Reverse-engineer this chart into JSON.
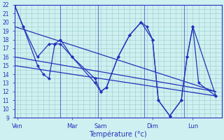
{
  "xlabel": "Température (°c)",
  "background_color": "#cff0f0",
  "line_color": "#2233bb",
  "grid_color": "#99cccc",
  "grid_color2": "#aadddd",
  "ylim": [
    9,
    22
  ],
  "xlim": [
    0,
    36
  ],
  "yticks": [
    9,
    10,
    11,
    12,
    13,
    14,
    15,
    16,
    17,
    18,
    19,
    20,
    21,
    22
  ],
  "xtick_labels": [
    "Ven",
    "Mar",
    "Sam",
    "Dim",
    "Lun"
  ],
  "xtick_positions": [
    0.5,
    10,
    15,
    24,
    31
  ],
  "vlines": [
    8,
    14.5,
    22.5,
    29.5
  ],
  "line1_x": [
    0,
    1.5,
    4,
    6,
    7,
    8,
    10,
    14,
    15,
    16,
    18,
    20,
    22,
    24,
    25,
    27,
    29,
    30,
    31,
    35
  ],
  "line1_y": [
    22,
    19.5,
    16,
    17.5,
    17.5,
    18,
    16,
    13.5,
    12,
    12.5,
    16,
    18.5,
    20,
    18,
    11,
    9.2,
    11,
    16,
    19.5,
    11.5
  ],
  "line2_x": [
    0,
    1.5,
    4,
    5,
    6,
    7,
    8,
    10,
    14,
    15,
    16,
    18,
    20,
    22,
    23,
    24,
    25,
    27,
    29,
    30,
    31,
    32,
    35
  ],
  "line2_y": [
    22,
    19.5,
    15,
    14,
    13.5,
    17.5,
    17.5,
    16,
    13,
    12,
    12.5,
    16,
    18.5,
    20,
    19.5,
    18,
    11,
    9.2,
    11,
    16,
    19.5,
    13,
    11.5
  ],
  "trend1_x": [
    0,
    35
  ],
  "trend1_y": [
    19.5,
    12
  ],
  "trend2_x": [
    0,
    35
  ],
  "trend2_y": [
    16,
    12
  ],
  "trend3_x": [
    0,
    35
  ],
  "trend3_y": [
    15,
    11.5
  ],
  "marker_size": 2.5,
  "line_width": 0.9,
  "tick_fontsize": 5.5,
  "xlabel_fontsize": 7
}
